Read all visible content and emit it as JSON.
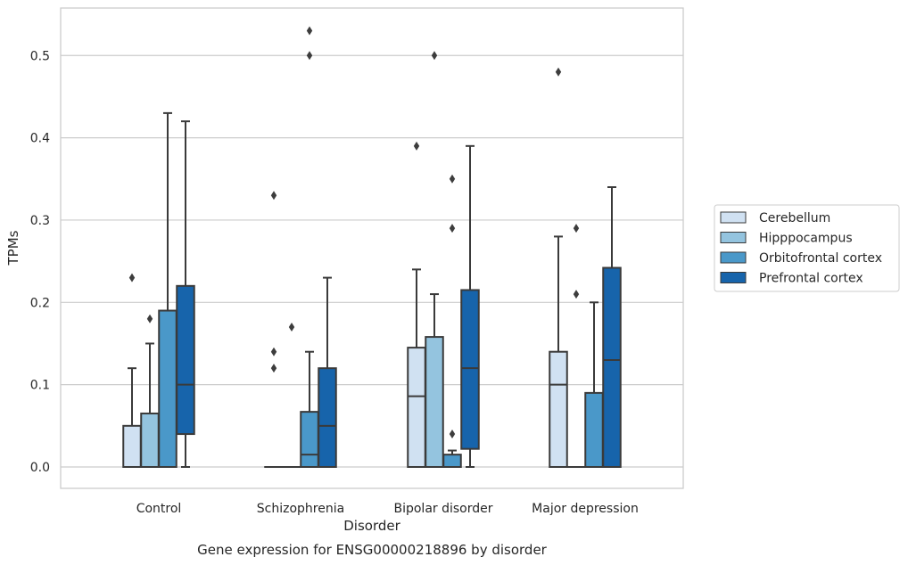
{
  "chart_data": {
    "type": "box",
    "title": "",
    "caption": "Gene expression for ENSG00000218896 by disorder",
    "xlabel": "Disorder",
    "ylabel": "TPMs",
    "ylim": [
      -0.026,
      0.557
    ],
    "yticks": [
      "0.0",
      "0.1",
      "0.2",
      "0.3",
      "0.4",
      "0.5"
    ],
    "ytick_values": [
      0.0,
      0.1,
      0.2,
      0.3,
      0.4,
      0.5
    ],
    "grid": true,
    "legend_position": "right",
    "categories": [
      "Control",
      "Schizophrenia",
      "Bipolar disorder",
      "Major depression"
    ],
    "series": [
      {
        "name": "Cerebellum",
        "color": "#d0e1f2",
        "boxes": [
          {
            "min": 0.0,
            "q1": 0.0,
            "median": 0.0,
            "q3": 0.05,
            "max": 0.12,
            "outliers": [
              0.23
            ]
          },
          {
            "min": 0.0,
            "q1": 0.0,
            "median": 0.0,
            "q3": 0.0,
            "max": 0.0,
            "outliers": [
              0.12,
              0.14,
              0.33
            ]
          },
          {
            "min": 0.0,
            "q1": 0.0,
            "median": 0.086,
            "q3": 0.145,
            "max": 0.24,
            "outliers": [
              0.39
            ]
          },
          {
            "min": 0.0,
            "q1": 0.0,
            "median": 0.1,
            "q3": 0.14,
            "max": 0.28,
            "outliers": [
              0.48
            ]
          }
        ]
      },
      {
        "name": "Hipppocampus",
        "color": "#94c4df",
        "boxes": [
          {
            "min": 0.0,
            "q1": 0.0,
            "median": 0.0,
            "q3": 0.065,
            "max": 0.15,
            "outliers": [
              0.18
            ]
          },
          {
            "min": 0.0,
            "q1": 0.0,
            "median": 0.0,
            "q3": 0.0,
            "max": 0.0,
            "outliers": [
              0.17
            ]
          },
          {
            "min": 0.0,
            "q1": 0.0,
            "median": 0.0,
            "q3": 0.158,
            "max": 0.21,
            "outliers": [
              0.5
            ]
          },
          {
            "min": 0.0,
            "q1": 0.0,
            "median": 0.0,
            "q3": 0.0,
            "max": 0.0,
            "outliers": [
              0.21,
              0.29
            ]
          }
        ]
      },
      {
        "name": "Orbitofrontal cortex",
        "color": "#4a98c9",
        "boxes": [
          {
            "min": 0.0,
            "q1": 0.0,
            "median": 0.0,
            "q3": 0.19,
            "max": 0.43,
            "outliers": []
          },
          {
            "min": 0.0,
            "q1": 0.0,
            "median": 0.015,
            "q3": 0.067,
            "max": 0.14,
            "outliers": [
              0.5,
              0.53
            ]
          },
          {
            "min": 0.0,
            "q1": 0.0,
            "median": 0.0,
            "q3": 0.015,
            "max": 0.02,
            "outliers": [
              0.04,
              0.29,
              0.35
            ]
          },
          {
            "min": 0.0,
            "q1": 0.0,
            "median": 0.0,
            "q3": 0.09,
            "max": 0.2,
            "outliers": []
          }
        ]
      },
      {
        "name": "Prefrontal cortex",
        "color": "#1764ab",
        "boxes": [
          {
            "min": 0.0,
            "q1": 0.04,
            "median": 0.1,
            "q3": 0.22,
            "max": 0.42,
            "outliers": []
          },
          {
            "min": 0.0,
            "q1": 0.0,
            "median": 0.05,
            "q3": 0.12,
            "max": 0.23,
            "outliers": []
          },
          {
            "min": 0.0,
            "q1": 0.022,
            "median": 0.12,
            "q3": 0.215,
            "max": 0.39,
            "outliers": []
          },
          {
            "min": 0.0,
            "q1": 0.0,
            "median": 0.13,
            "q3": 0.242,
            "max": 0.34,
            "outliers": []
          }
        ]
      }
    ]
  },
  "colors": {
    "grid": "#cccccc",
    "frame": "#cccccc",
    "box_edge": "#3a3a3a",
    "text": "#262626"
  }
}
